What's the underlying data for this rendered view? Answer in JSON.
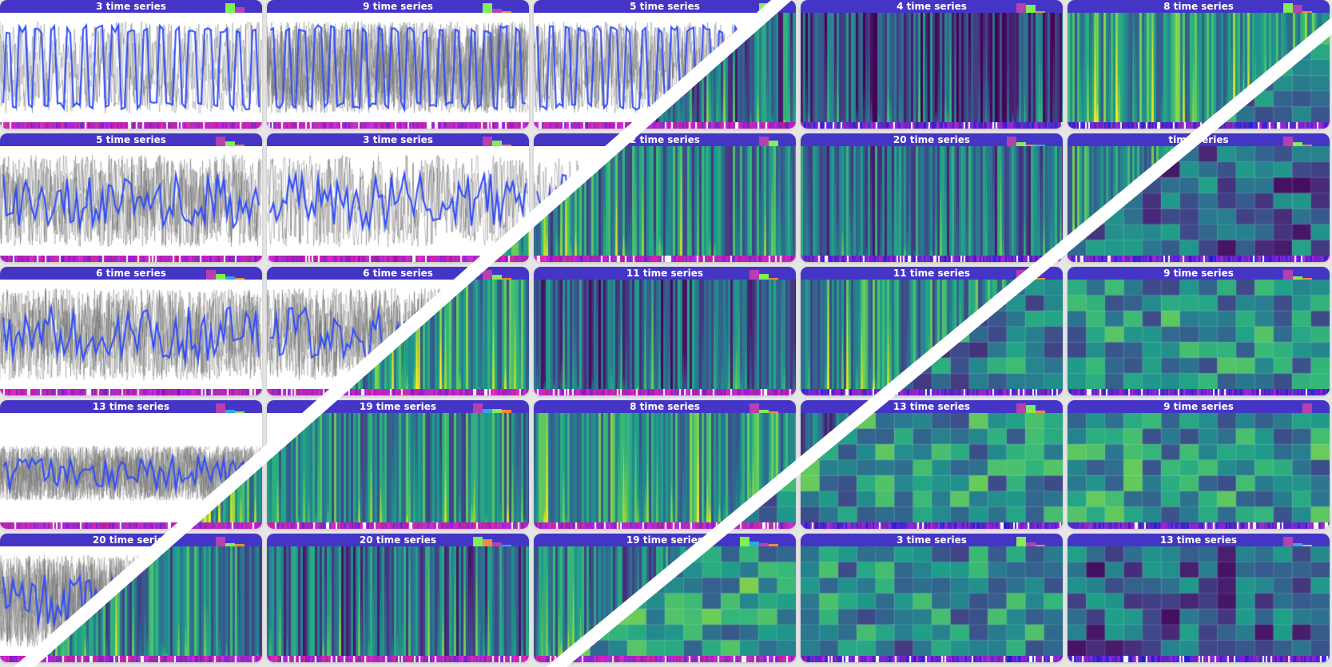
{
  "colors": {
    "header": "#4535c6",
    "series_line": "#2f4bff",
    "band": "#ffffff"
  },
  "cards": [
    {
      "title": "3 time series",
      "legend": [
        {
          "color": "#80ee55",
          "level": 1.0
        },
        {
          "color": "#b83fb0",
          "level": 0.55
        }
      ]
    },
    {
      "title": "9 time series",
      "legend": [
        {
          "color": "#80ee55",
          "level": 1.0
        },
        {
          "color": "#b83fb0",
          "level": 0.45
        },
        {
          "color": "#f08a3c",
          "level": 0.15
        }
      ]
    },
    {
      "title": "5 time series",
      "legend": [
        {
          "color": "#80ee55",
          "level": 1.0
        },
        {
          "color": "#b83fb0",
          "level": 0.5
        }
      ]
    },
    {
      "title": "4 time series",
      "legend": [
        {
          "color": "#b83fb0",
          "level": 1.0
        },
        {
          "color": "#80ee55",
          "level": 0.8
        },
        {
          "color": "#f08a3c",
          "level": 0.15
        }
      ]
    },
    {
      "title": "8 time series",
      "legend": [
        {
          "color": "#80ee55",
          "level": 1.0
        },
        {
          "color": "#b83fb0",
          "level": 0.8
        },
        {
          "color": "#f08a3c",
          "level": 0.2
        }
      ]
    },
    {
      "title": "5 time series",
      "legend": [
        {
          "color": "#b83fb0",
          "level": 1.0
        },
        {
          "color": "#80ee55",
          "level": 0.5
        },
        {
          "color": "#f08a3c",
          "level": 0.15
        }
      ]
    },
    {
      "title": "3 time series",
      "legend": [
        {
          "color": "#b83fb0",
          "level": 1.0
        },
        {
          "color": "#80ee55",
          "level": 0.6
        },
        {
          "color": "#f08a3c",
          "level": 0.15
        }
      ]
    },
    {
      "title": "2 time series",
      "legend": [
        {
          "color": "#b83fb0",
          "level": 1.0
        },
        {
          "color": "#80ee55",
          "level": 0.6
        }
      ]
    },
    {
      "title": "20 time series",
      "legend": [
        {
          "color": "#b83fb0",
          "level": 1.0
        },
        {
          "color": "#80ee55",
          "level": 0.4
        },
        {
          "color": "#f08a3c",
          "level": 0.2
        },
        {
          "color": "#2ea8e0",
          "level": 0.15
        }
      ]
    },
    {
      "title": "time series",
      "legend": [
        {
          "color": "#b83fb0",
          "level": 1.0
        },
        {
          "color": "#80ee55",
          "level": 0.4
        },
        {
          "color": "#f08a3c",
          "level": 0.15
        }
      ]
    },
    {
      "title": "6 time series",
      "legend": [
        {
          "color": "#b83fb0",
          "level": 1.0
        },
        {
          "color": "#80ee55",
          "level": 0.6
        },
        {
          "color": "#2ea8e0",
          "level": 0.3
        },
        {
          "color": "#f08a3c",
          "level": 0.15
        }
      ]
    },
    {
      "title": "6 time series",
      "legend": [
        {
          "color": "#b83fb0",
          "level": 1.0
        },
        {
          "color": "#80ee55",
          "level": 0.5
        },
        {
          "color": "#f08a3c",
          "level": 0.15
        }
      ]
    },
    {
      "title": "11 time series",
      "legend": [
        {
          "color": "#b83fb0",
          "level": 1.0
        },
        {
          "color": "#80ee55",
          "level": 0.6
        },
        {
          "color": "#f08a3c",
          "level": 0.2
        }
      ]
    },
    {
      "title": "11 time series",
      "legend": [
        {
          "color": "#b83fb0",
          "level": 1.0
        },
        {
          "color": "#80ee55",
          "level": 0.5
        },
        {
          "color": "#f08a3c",
          "level": 0.2
        }
      ]
    },
    {
      "title": "9 time series",
      "legend": [
        {
          "color": "#b83fb0",
          "level": 1.0
        },
        {
          "color": "#80ee55",
          "level": 0.3
        },
        {
          "color": "#f08a3c",
          "level": 0.15
        }
      ]
    },
    {
      "title": "13 time series",
      "legend": [
        {
          "color": "#b83fb0",
          "level": 1.0
        },
        {
          "color": "#2ea8e0",
          "level": 0.3
        },
        {
          "color": "#80ee55",
          "level": 0.2
        }
      ]
    },
    {
      "title": "19 time series",
      "legend": [
        {
          "color": "#b83fb0",
          "level": 1.0
        },
        {
          "color": "#2ea8e0",
          "level": 0.4
        },
        {
          "color": "#80ee55",
          "level": 0.4
        },
        {
          "color": "#f08a3c",
          "level": 0.3
        }
      ]
    },
    {
      "title": "8 time series",
      "legend": [
        {
          "color": "#b83fb0",
          "level": 1.0
        },
        {
          "color": "#80ee55",
          "level": 0.3
        },
        {
          "color": "#f08a3c",
          "level": 0.15
        }
      ]
    },
    {
      "title": "13 time series",
      "legend": [
        {
          "color": "#b83fb0",
          "level": 1.0
        },
        {
          "color": "#80ee55",
          "level": 0.85
        },
        {
          "color": "#f08a3c",
          "level": 0.25
        }
      ]
    },
    {
      "title": "9 time series",
      "legend": [
        {
          "color": "#b83fb0",
          "level": 1.0
        }
      ]
    },
    {
      "title": "20 time series",
      "legend": [
        {
          "color": "#b83fb0",
          "level": 1.0
        },
        {
          "color": "#80ee55",
          "level": 0.35
        },
        {
          "color": "#f08a3c",
          "level": 0.25
        }
      ]
    },
    {
      "title": "20 time series",
      "legend": [
        {
          "color": "#80ee55",
          "level": 1.0
        },
        {
          "color": "#f08a3c",
          "level": 0.75
        },
        {
          "color": "#b83fb0",
          "level": 0.45
        },
        {
          "color": "#2ea8e0",
          "level": 0.2
        }
      ]
    },
    {
      "title": "19 time series",
      "legend": [
        {
          "color": "#80ee55",
          "level": 1.0
        },
        {
          "color": "#2ea8e0",
          "level": 0.5
        },
        {
          "color": "#b83fb0",
          "level": 0.3
        },
        {
          "color": "#f08a3c",
          "level": 0.25
        }
      ]
    },
    {
      "title": "3 time series",
      "legend": [
        {
          "color": "#80ee55",
          "level": 1.0
        },
        {
          "color": "#b83fb0",
          "level": 0.4
        },
        {
          "color": "#f08a3c",
          "level": 0.2
        }
      ]
    },
    {
      "title": "13 time series",
      "legend": [
        {
          "color": "#b83fb0",
          "level": 1.0
        },
        {
          "color": "#2ea8e0",
          "level": 0.3
        },
        {
          "color": "#80ee55",
          "level": 0.2
        }
      ]
    }
  ]
}
